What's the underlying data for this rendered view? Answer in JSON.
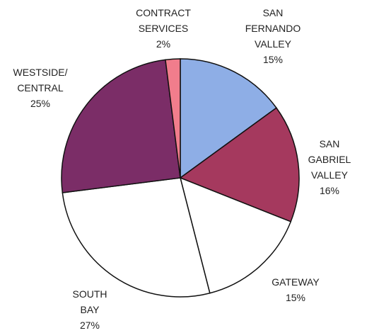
{
  "chart_data": {
    "type": "pie",
    "categories": [
      "SAN\nFERNANDO\nVALLEY",
      "SAN GABRIEL\nVALLEY",
      "GATEWAY",
      "SOUTH\nBAY",
      "WESTSIDE/\nCENTRAL",
      "CONTRACT\nSERVICES"
    ],
    "values": [
      15,
      16,
      15,
      27,
      25,
      2
    ],
    "value_labels": [
      "15%",
      "16%",
      "15%",
      "27%",
      "25%",
      "2%"
    ],
    "colors": [
      "#8eaee6",
      "#a5395e",
      "#ffffff",
      "#ffffff",
      "#7b2d67",
      "#f17d8c"
    ]
  }
}
